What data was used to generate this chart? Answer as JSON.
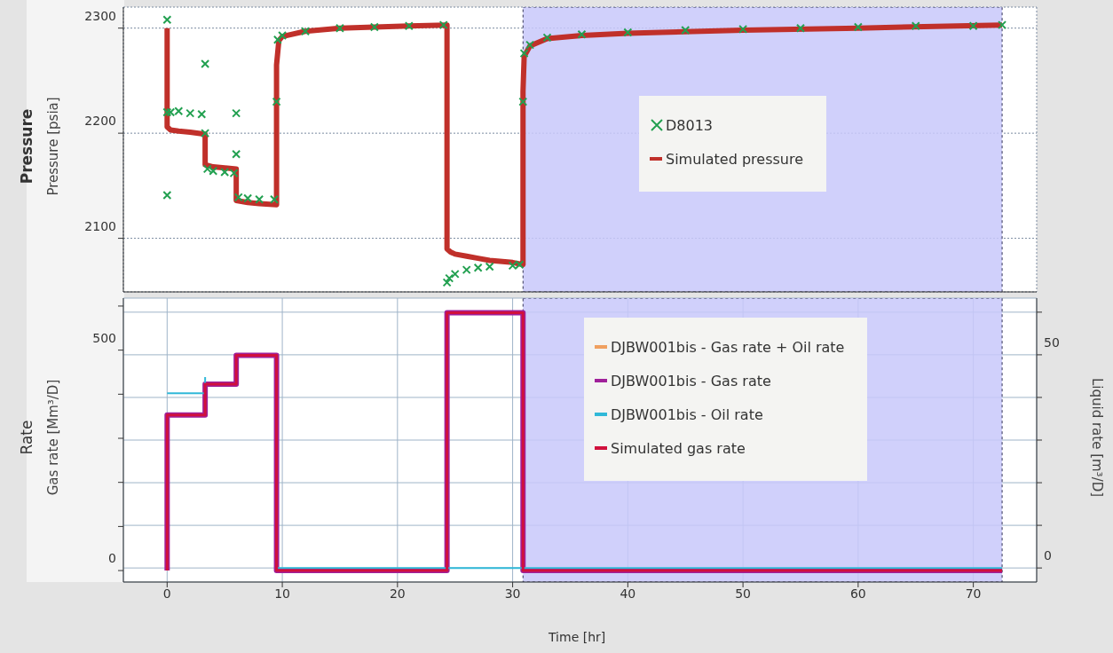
{
  "chart_data": [
    {
      "type": "line",
      "title": "Pressure",
      "ylabel": "Pressure [psia]",
      "xlim": [
        -3.8,
        75.5
      ],
      "xticks": [
        0,
        10,
        20,
        30,
        40,
        50,
        60,
        70
      ],
      "ylim": [
        2049,
        2320
      ],
      "yticks": [
        2100,
        2200,
        2300
      ],
      "tick_labels": "y",
      "grid": true,
      "legend": "right",
      "bands": [
        {
          "axis": "x",
          "from": 30.9,
          "to": 72.5,
          "color": "#c8c8fa"
        }
      ],
      "series": [
        {
          "name": "D8013",
          "type": "scatter",
          "marker": "cross",
          "color": "#22a050",
          "x": [
            0,
            0,
            0,
            0.3,
            1,
            2,
            3,
            3.3,
            3.3,
            3.5,
            4,
            5,
            5.8,
            6,
            6,
            6.2,
            7,
            8,
            9.3,
            9.5,
            9.6,
            10,
            12,
            15,
            18,
            21,
            24,
            24.3,
            24.5,
            25,
            26,
            27,
            28,
            30,
            30.6,
            30.9,
            31,
            31.5,
            33,
            36,
            40,
            45,
            50,
            55,
            60,
            65,
            70,
            72.5
          ],
          "values": [
            2308,
            2141,
            2220,
            2220,
            2221,
            2219,
            2218,
            2266,
            2200,
            2166,
            2164,
            2163,
            2162,
            2219,
            2180,
            2139,
            2138,
            2137,
            2137,
            2230,
            2289,
            2293,
            2297,
            2300,
            2301,
            2302,
            2303,
            2058,
            2062,
            2066,
            2070,
            2072,
            2073,
            2074,
            2075,
            2230,
            2276,
            2284,
            2291,
            2294,
            2296,
            2298,
            2299,
            2300,
            2301,
            2302,
            2302,
            2303
          ]
        },
        {
          "name": "Simulated pressure",
          "color": "#c0302a",
          "x": [
            0,
            0,
            0.3,
            1,
            2,
            3.3,
            3.3,
            4,
            5,
            6,
            6,
            7,
            8,
            9.5,
            9.5,
            9.7,
            10,
            12,
            15,
            18,
            21,
            24.3,
            24.3,
            24.6,
            25,
            26,
            27,
            28,
            30,
            30.9,
            30.9,
            31,
            31.5,
            33,
            36,
            40,
            50,
            60,
            72.5
          ],
          "values": [
            2300,
            2206,
            2203,
            2202,
            2201,
            2199,
            2170,
            2168,
            2167,
            2166,
            2136,
            2134,
            2133,
            2132,
            2265,
            2288,
            2292,
            2297,
            2300,
            2301,
            2302,
            2303,
            2090,
            2087,
            2085,
            2083,
            2081,
            2079,
            2077,
            2075,
            2240,
            2273,
            2283,
            2290,
            2293,
            2295,
            2298,
            2300,
            2303
          ]
        }
      ]
    },
    {
      "type": "step",
      "title": "Rate",
      "xlabel": "Time [hr]",
      "ylabel": "Gas rate [Mm³/D]",
      "y2label": "Liquid rate [m³/D]",
      "xlim": [
        -3.8,
        75.5
      ],
      "xticks": [
        0,
        10,
        20,
        30,
        40,
        50,
        60,
        70
      ],
      "ylim": [
        -26,
        618
      ],
      "yticks": [
        0,
        {
          "value": 100,
          "label": null
        },
        {
          "value": 200,
          "label": null
        },
        {
          "value": 300,
          "label": null
        },
        {
          "value": 400,
          "label": null
        },
        500,
        {
          "value": 600,
          "label": null
        }
      ],
      "y2lim": [
        -3.3,
        63.3
      ],
      "y2ticks": [
        0,
        {
          "value": 10,
          "label": null
        },
        {
          "value": 20,
          "label": null
        },
        {
          "value": 30,
          "label": null
        },
        {
          "value": 40,
          "label": null
        },
        50,
        {
          "value": 60,
          "label": null
        }
      ],
      "grid": true,
      "legend": "top right",
      "bands": [
        {
          "axis": "x",
          "from": 30.9,
          "to": 72.5,
          "color": "#c8c8fa"
        }
      ],
      "series": [
        {
          "name": "DJBW001bis - Gas rate + Oil rate",
          "color": "#f0a060"
        },
        {
          "name": "DJBW001bis - Gas rate",
          "color": "#a0209a",
          "x": [
            0,
            0,
            3.3,
            6,
            9.5,
            24.3,
            30.9,
            72.5
          ],
          "values": [
            0,
            353,
            423,
            488,
            0,
            585,
            0,
            0
          ]
        },
        {
          "name": "DJBW001bis - Oil rate",
          "color": "#30b8d8",
          "axis": "y2",
          "x": [
            0,
            3.3,
            6,
            9.5,
            72.5
          ],
          "values": [
            41,
            44.8,
            null,
            0,
            0
          ]
        },
        {
          "name": "Simulated gas rate",
          "color": "#d0103c",
          "x": [
            0,
            0,
            3.3,
            6,
            9.5,
            24.3,
            30.9,
            72.5
          ],
          "values": [
            0,
            353,
            423,
            488,
            0,
            585,
            0,
            0
          ]
        }
      ]
    }
  ]
}
